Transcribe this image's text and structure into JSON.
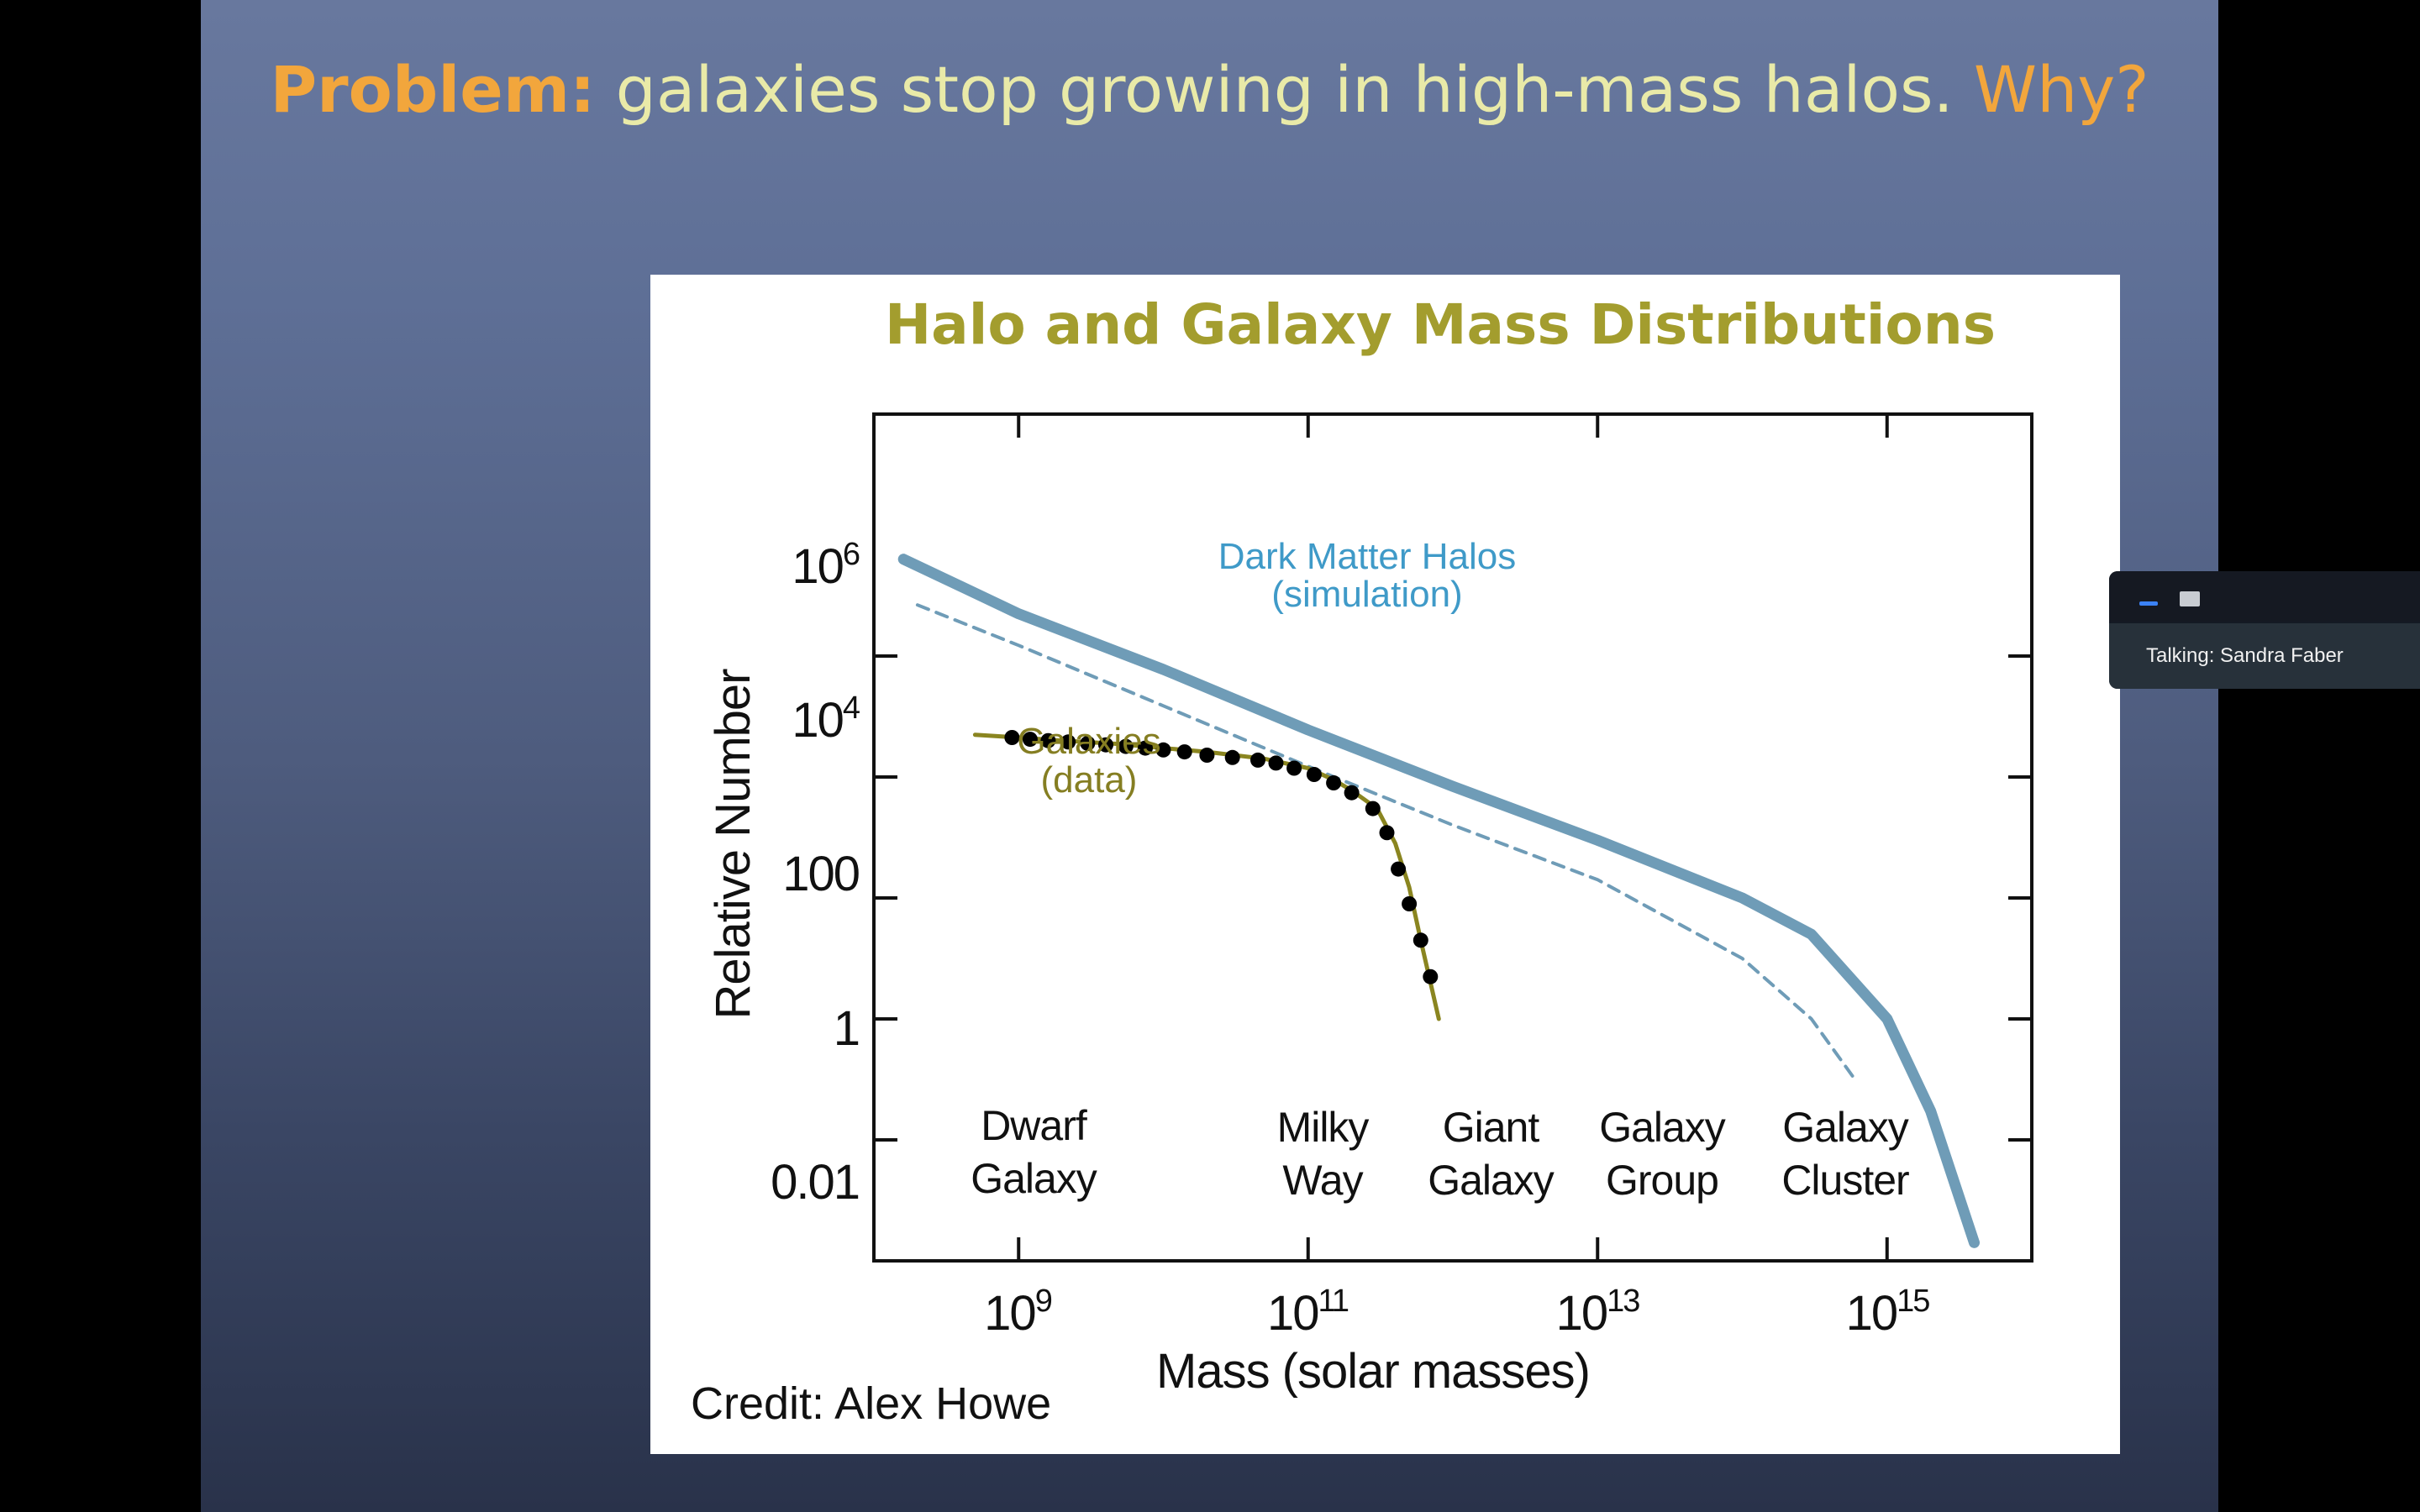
{
  "slide": {
    "title_lead": "Problem:",
    "title_main": " galaxies stop growing in high-mass halos. ",
    "title_tail": "Why?"
  },
  "figure": {
    "credit": "Credit: Alex Howe",
    "annotations": {
      "halos_line1": "Dark Matter Halos",
      "halos_line2": "(simulation)",
      "galaxies_line1": "Galaxies",
      "galaxies_line2": "(data)"
    },
    "categories": [
      {
        "line1": "Dwarf",
        "line2": "Galaxy"
      },
      {
        "line1": "Milky",
        "line2": "Way"
      },
      {
        "line1": "Giant",
        "line2": "Galaxy"
      },
      {
        "line1": "Galaxy",
        "line2": "Group"
      },
      {
        "line1": "Galaxy",
        "line2": "Cluster"
      }
    ],
    "y_ticks": [
      {
        "base": "10",
        "sup": "6"
      },
      {
        "base": "10",
        "sup": "4"
      },
      {
        "base": "100",
        "sup": ""
      },
      {
        "base": "1",
        "sup": ""
      },
      {
        "base": "0.01",
        "sup": ""
      }
    ],
    "x_ticks": [
      {
        "base": "10",
        "sup": "9"
      },
      {
        "base": "10",
        "sup": "11"
      },
      {
        "base": "10",
        "sup": "13"
      },
      {
        "base": "10",
        "sup": "15"
      }
    ]
  },
  "chart_data": {
    "type": "line",
    "title": "Halo and Galaxy Mass Distributions",
    "xlabel": "Mass (solar masses)",
    "ylabel": "Relative Number",
    "x_scale": "log",
    "y_scale": "log",
    "xlim": [
      100000000.0,
      1e+16
    ],
    "ylim": [
      0.0001,
      10000000000.0
    ],
    "colors": {
      "halos": "#6f9cb7",
      "halos_dashed": "#6f9cb7",
      "galaxies": "#8a8520",
      "points": "#000000"
    },
    "series": [
      {
        "name": "Dark Matter Halos (simulation)",
        "style": "solid-thick",
        "x": [
          160000000.0,
          1000000000.0,
          10000000000.0,
          100000000000.0,
          1000000000000.0,
          10000000000000.0,
          100000000000000.0,
          300000000000000.0,
          1000000000000000.0,
          2000000000000000.0,
          4000000000000000.0
        ],
        "y": [
          40000000.0,
          5000000.0,
          600000.0,
          60000.0,
          7000.0,
          900.0,
          100.0,
          25.0,
          1.0,
          0.03,
          0.0002
        ]
      },
      {
        "style": "dashed",
        "x": [
          200000000.0,
          1000000000.0,
          10000000000.0,
          100000000000.0,
          1000000000000.0,
          10000000000000.0,
          100000000000000.0,
          300000000000000.0,
          600000000000000.0
        ],
        "y": [
          7000000.0,
          1500000.0,
          150000.0,
          15000.0,
          1600.0,
          200.0,
          10.0,
          1.0,
          0.1
        ]
      },
      {
        "name": "Galaxies (data)",
        "style": "solid-with-points",
        "x": [
          500000000.0,
          1000000000.0,
          2000000000.0,
          5000000000.0,
          10000000000.0,
          20000000000.0,
          50000000000.0,
          100000000000.0,
          150000000000.0,
          200000000000.0,
          300000000000.0,
          400000000000.0,
          500000000000.0,
          600000000000.0,
          800000000000.0
        ],
        "y": [
          50000.0,
          45000.0,
          40000.0,
          35000.0,
          30000.0,
          26000.0,
          20000.0,
          14000.0,
          9000.0,
          6000.0,
          3000.0,
          800.0,
          150.0,
          20.0,
          1.0
        ],
        "points_x": [
          900000000.0,
          1200000000.0,
          1600000000.0,
          2200000000.0,
          3000000000.0,
          4000000000.0,
          5500000000.0,
          7500000000.0,
          10000000000.0,
          14000000000.0,
          20000000000.0,
          30000000000.0,
          45000000000.0,
          60000000000.0,
          80000000000.0,
          110000000000.0,
          150000000000.0,
          200000000000.0,
          280000000000.0,
          350000000000.0,
          420000000000.0,
          500000000000.0,
          600000000000.0,
          700000000000.0
        ],
        "points_y": [
          45000.0,
          42000.0,
          40000.0,
          38000.0,
          36000.0,
          34000.0,
          32000.0,
          30000.0,
          28000.0,
          26000.0,
          23000.0,
          21000.0,
          19000.0,
          17000.0,
          14000.0,
          11000.0,
          8000.0,
          5500.0,
          3000.0,
          1200.0,
          300.0,
          80.0,
          20.0,
          5.0
        ]
      }
    ]
  },
  "zoom": {
    "talking_label": "Talking: Sandra Faber"
  }
}
